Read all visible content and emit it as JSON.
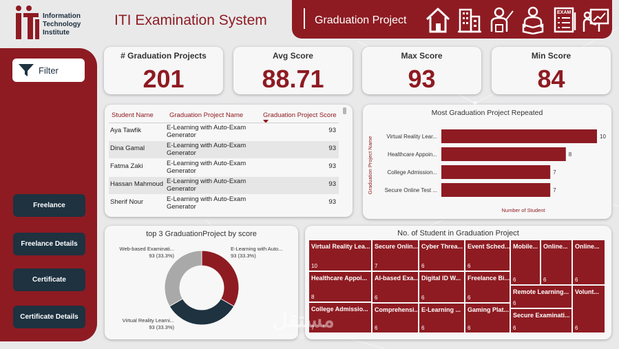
{
  "logo": {
    "line1": "Information",
    "line2": "Technology",
    "line3": "Institute"
  },
  "app_title": "ITI Examination System",
  "header": {
    "title": "Graduation Project"
  },
  "nav_icons": [
    "home-icon",
    "building-icon",
    "instructor-icon",
    "student-reading-icon",
    "exam-icon",
    "presentation-icon"
  ],
  "sidebar": {
    "filter_label": "Filter",
    "buttons": [
      "Freelance",
      "Freelance Details",
      "Certificate",
      "Certificate Details"
    ]
  },
  "kpis": [
    {
      "label": "# Graduation Projects",
      "value": "201"
    },
    {
      "label": "Avg Score",
      "value": "88.71"
    },
    {
      "label": "Max Score",
      "value": "93"
    },
    {
      "label": "Min Score",
      "value": "84"
    }
  ],
  "table": {
    "headers": [
      "Student Name",
      "Graduation Project Name",
      "Graduation Project Score"
    ],
    "rows": [
      {
        "name": "Aya Tawfik",
        "project": "E-Learning with Auto-Exam Generator",
        "score": "93"
      },
      {
        "name": "Dina Gamal",
        "project": "E-Learning with Auto-Exam Generator",
        "score": "93"
      },
      {
        "name": "Fatma Zaki",
        "project": "E-Learning with Auto-Exam Generator",
        "score": "93"
      },
      {
        "name": "Hassan Mahmoud",
        "project": "E-Learning with Auto-Exam Generator",
        "score": "93"
      },
      {
        "name": "Sherif Nour",
        "project": "E-Learning with Auto-Exam Generator",
        "score": "93"
      }
    ]
  },
  "colors": {
    "accent": "#8e1b22",
    "dark": "#1e3240",
    "gray": "#a9a9a9"
  },
  "chart_data": [
    {
      "type": "bar",
      "orientation": "horizontal",
      "title": "Most Graduation Project Repeated",
      "xlabel": "Number of Student",
      "ylabel": "Graduation Project Name",
      "categories": [
        "Virtual Reality Lear...",
        "Healthcare Appoin...",
        "College Admission...",
        "Secure Online Test ..."
      ],
      "values": [
        10,
        8,
        7,
        7
      ],
      "xlim": [
        0,
        10
      ]
    },
    {
      "type": "pie",
      "donut": true,
      "title": "top 3 GraduationProject by score",
      "slices": [
        {
          "label": "E-Learning with Auto...",
          "value": 93,
          "pct": "93 (33.3%)",
          "color": "#8e1b22"
        },
        {
          "label": "Virtual Reality Learni...",
          "value": 93,
          "pct": "93 (33.3%)",
          "color": "#1e3240"
        },
        {
          "label": "Web-based Examinati...",
          "value": 93,
          "pct": "93 (33.3%)",
          "color": "#a9a9a9"
        }
      ]
    },
    {
      "type": "treemap",
      "title": "No. of Student in Graduation Project",
      "items": [
        {
          "label": "Virtual Reality Lea...",
          "value": 10
        },
        {
          "label": "Healthcare Appoi...",
          "value": 8
        },
        {
          "label": "College Admissio...",
          "value": 7
        },
        {
          "label": "Secure Onlin...",
          "value": 7
        },
        {
          "label": "AI-based Exa...",
          "value": 6
        },
        {
          "label": "Comprehensi...",
          "value": 6
        },
        {
          "label": "Cyber Threa...",
          "value": 6
        },
        {
          "label": "Digital ID W...",
          "value": 6
        },
        {
          "label": "E-Learning ...",
          "value": 6
        },
        {
          "label": "Event Sched...",
          "value": 6
        },
        {
          "label": "Freelance Bi...",
          "value": 6
        },
        {
          "label": "Gaming Plat...",
          "value": 6
        },
        {
          "label": "Mobile...",
          "value": 6
        },
        {
          "label": "Online...",
          "value": 6
        },
        {
          "label": "Online...",
          "value": 6
        },
        {
          "label": "Remote Learning...",
          "value": 6
        },
        {
          "label": "Secure Examinati...",
          "value": 6
        },
        {
          "label": "Volunt...",
          "value": 6
        }
      ]
    }
  ],
  "watermark": {
    "text": "مستقل",
    "sub": "mostaql.com"
  }
}
